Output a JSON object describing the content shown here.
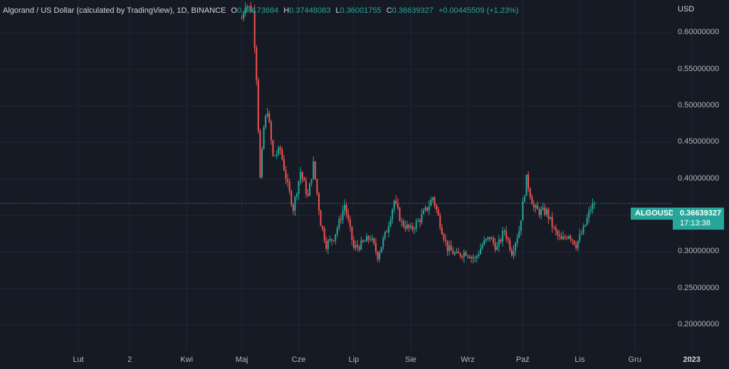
{
  "legend": {
    "title": "Algorand / US Dollar (calculated by TradingView), 1D, BINANCE",
    "o_label": "O",
    "o_value": "0.36173684",
    "h_label": "H",
    "h_value": "0.37448083",
    "l_label": "L",
    "l_value": "0.36001755",
    "c_label": "C",
    "c_value": "0.36639327",
    "change": "+0.00445509 (+1.23%)"
  },
  "currency": "USD",
  "last_price": {
    "symbol": "ALGOUSD",
    "price": "0.36639327",
    "countdown": "17:13:38",
    "value": 0.36639327
  },
  "colors": {
    "background": "#161a25",
    "up": "#26a69a",
    "down": "#ef5350",
    "grid": "#232633",
    "text": "#b2b5be"
  },
  "chart_data": {
    "type": "candlestick",
    "y_axis": {
      "ticks": [
        0.2,
        0.25,
        0.3,
        0.35,
        0.4,
        0.45,
        0.5,
        0.55,
        0.6
      ],
      "tick_labels": [
        "0.20000000",
        "0.25000000",
        "0.30000000",
        "0.35000000",
        "0.40000000",
        "0.45000000",
        "0.50000000",
        "0.55000000",
        "0.60000000"
      ],
      "range": [
        0.165,
        0.645
      ],
      "position": "right"
    },
    "x_axis": {
      "ticks": [
        "Lut",
        "2",
        "Kwi",
        "Maj",
        "Cze",
        "Lip",
        "Sie",
        "Wrz",
        "Paź",
        "Lis",
        "Gru",
        "2023"
      ],
      "bold_ticks": [
        "2023"
      ]
    },
    "grid": true,
    "candle_path": [
      {
        "date": "2022-05-01",
        "price": 0.62
      },
      {
        "date": "2022-05-03",
        "price": 0.64
      },
      {
        "date": "2022-05-07",
        "price": 0.63
      },
      {
        "date": "2022-05-09",
        "price": 0.54
      },
      {
        "date": "2022-05-11",
        "price": 0.4
      },
      {
        "date": "2022-05-13",
        "price": 0.47
      },
      {
        "date": "2022-05-15",
        "price": 0.495
      },
      {
        "date": "2022-05-18",
        "price": 0.43
      },
      {
        "date": "2022-05-22",
        "price": 0.44
      },
      {
        "date": "2022-05-26",
        "price": 0.39
      },
      {
        "date": "2022-05-29",
        "price": 0.36
      },
      {
        "date": "2022-06-02",
        "price": 0.41
      },
      {
        "date": "2022-06-06",
        "price": 0.375
      },
      {
        "date": "2022-06-09",
        "price": 0.42
      },
      {
        "date": "2022-06-13",
        "price": 0.34
      },
      {
        "date": "2022-06-16",
        "price": 0.31
      },
      {
        "date": "2022-06-20",
        "price": 0.32
      },
      {
        "date": "2022-06-23",
        "price": 0.34
      },
      {
        "date": "2022-06-26",
        "price": 0.365
      },
      {
        "date": "2022-07-01",
        "price": 0.305
      },
      {
        "date": "2022-07-05",
        "price": 0.31
      },
      {
        "date": "2022-07-10",
        "price": 0.32
      },
      {
        "date": "2022-07-14",
        "price": 0.295
      },
      {
        "date": "2022-07-19",
        "price": 0.33
      },
      {
        "date": "2022-07-23",
        "price": 0.37
      },
      {
        "date": "2022-07-27",
        "price": 0.34
      },
      {
        "date": "2022-08-01",
        "price": 0.33
      },
      {
        "date": "2022-08-06",
        "price": 0.345
      },
      {
        "date": "2022-08-10",
        "price": 0.36
      },
      {
        "date": "2022-08-13",
        "price": 0.375
      },
      {
        "date": "2022-08-18",
        "price": 0.33
      },
      {
        "date": "2022-08-21",
        "price": 0.305
      },
      {
        "date": "2022-08-26",
        "price": 0.295
      },
      {
        "date": "2022-08-31",
        "price": 0.3
      },
      {
        "date": "2022-09-05",
        "price": 0.29
      },
      {
        "date": "2022-09-09",
        "price": 0.31
      },
      {
        "date": "2022-09-13",
        "price": 0.32
      },
      {
        "date": "2022-09-17",
        "price": 0.305
      },
      {
        "date": "2022-09-21",
        "price": 0.33
      },
      {
        "date": "2022-09-25",
        "price": 0.3
      },
      {
        "date": "2022-09-29",
        "price": 0.33
      },
      {
        "date": "2022-10-03",
        "price": 0.4
      },
      {
        "date": "2022-10-07",
        "price": 0.36
      },
      {
        "date": "2022-10-10",
        "price": 0.355
      },
      {
        "date": "2022-10-14",
        "price": 0.355
      },
      {
        "date": "2022-10-18",
        "price": 0.33
      },
      {
        "date": "2022-10-22",
        "price": 0.315
      },
      {
        "date": "2022-10-26",
        "price": 0.325
      },
      {
        "date": "2022-10-30",
        "price": 0.31
      },
      {
        "date": "2022-11-03",
        "price": 0.33
      },
      {
        "date": "2022-11-07",
        "price": 0.36
      },
      {
        "date": "2022-11-09",
        "price": 0.3664
      }
    ]
  }
}
